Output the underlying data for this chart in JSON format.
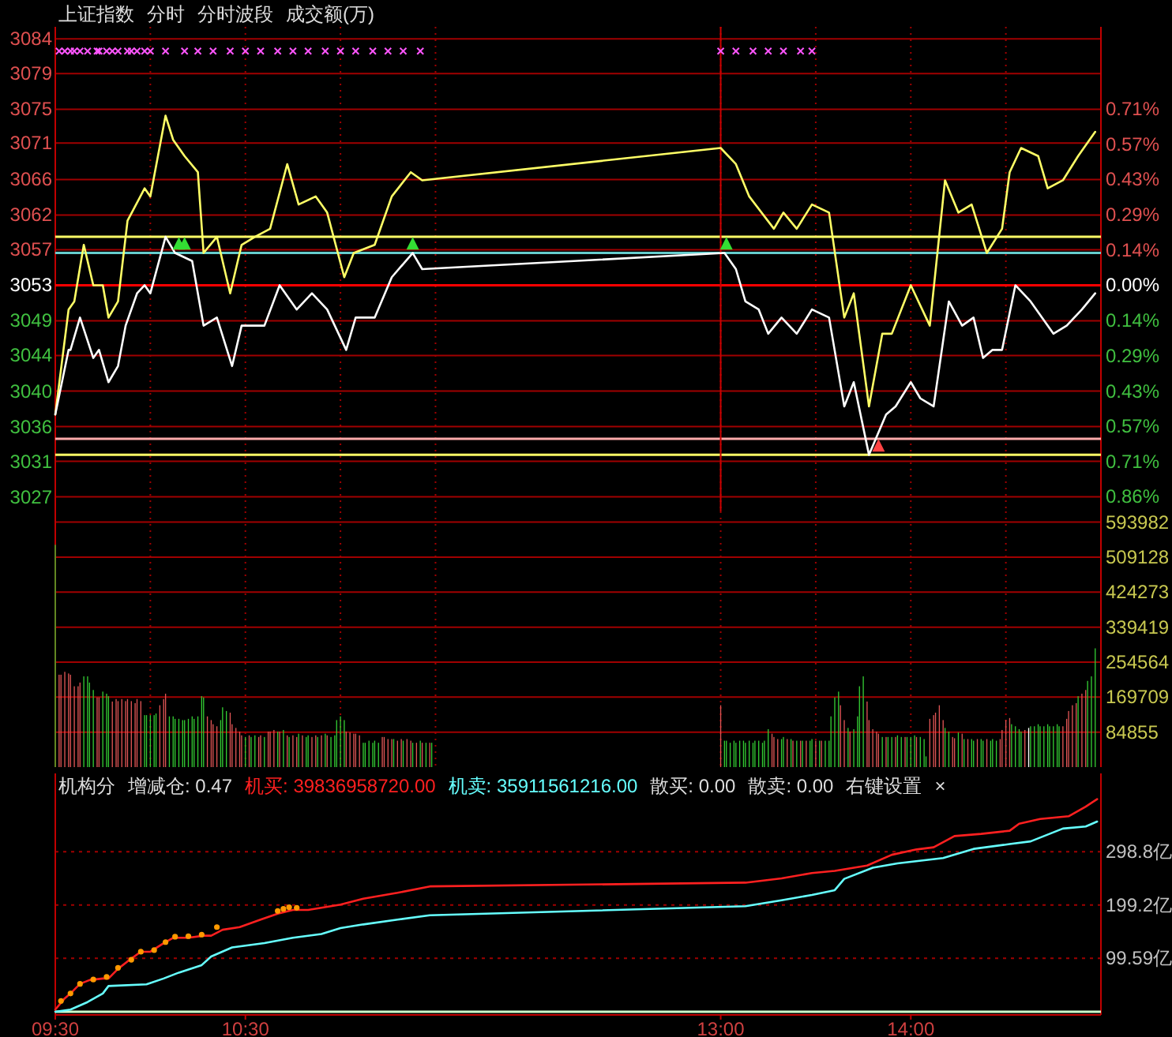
{
  "chart_data": [
    {
      "type": "line",
      "title": "上证指数",
      "annotations": [
        "分时",
        "分时波段",
        "成交额(万)"
      ],
      "xlim": [
        9.5,
        15
      ],
      "xticks": [
        {
          "value": 9.5,
          "label": null
        },
        {
          "value": 10,
          "label": null
        },
        {
          "value": 10.5,
          "label": null
        },
        {
          "value": 11,
          "label": null
        },
        {
          "value": 11.5,
          "label": null
        },
        {
          "value": 13,
          "label": null
        },
        {
          "value": 13.5,
          "label": null
        },
        {
          "value": 14,
          "label": null
        },
        {
          "value": 14.5,
          "label": null
        },
        {
          "value": 15,
          "label": null
        }
      ],
      "ylim": [
        3025,
        3085
      ],
      "yticks": [
        {
          "value": 3026.8,
          "label": "3027"
        },
        {
          "value": 3031.2,
          "label": "3031"
        },
        {
          "value": 3035.5,
          "label": "3036"
        },
        {
          "value": 3039.9,
          "label": "3040"
        },
        {
          "value": 3044.3,
          "label": "3044"
        },
        {
          "value": 3048.6,
          "label": "3049"
        },
        {
          "value": 3053,
          "label": "3053"
        },
        {
          "value": 3057.4,
          "label": "3057"
        },
        {
          "value": 3061.7,
          "label": "3062"
        },
        {
          "value": 3066.1,
          "label": "3066"
        },
        {
          "value": 3070.6,
          "label": "3071"
        },
        {
          "value": 3074.8,
          "label": "3075"
        },
        {
          "value": 3079.2,
          "label": "3079"
        },
        {
          "value": 3083.5,
          "label": "3084"
        }
      ],
      "y2lim": [
        -0.917,
        1.048
      ],
      "y2ticks": [
        {
          "value": -0.857,
          "label": "0.86%"
        },
        {
          "value": -0.714,
          "label": "0.71%"
        },
        {
          "value": -0.571,
          "label": "0.57%"
        },
        {
          "value": -0.429,
          "label": "0.43%"
        },
        {
          "value": -0.286,
          "label": "0.29%"
        },
        {
          "value": -0.143,
          "label": "0.14%"
        },
        {
          "value": 0,
          "label": "0.00%"
        },
        {
          "value": 0.143,
          "label": "0.14%"
        },
        {
          "value": 0.286,
          "label": "0.29%"
        },
        {
          "value": 0.429,
          "label": "0.43%"
        },
        {
          "value": 0.571,
          "label": "0.57%"
        },
        {
          "value": 0.714,
          "label": "0.71%"
        }
      ],
      "grid": true,
      "tick_labels": "y",
      "ref_lines": [
        {
          "axis": "y",
          "value": 3053,
          "color": "#ff0000"
        },
        {
          "axis": "y",
          "value": 3059,
          "color": "#ffff66"
        },
        {
          "axis": "y",
          "value": 3057,
          "color": "#66cccc"
        },
        {
          "axis": "y",
          "value": 3034,
          "color": "#ffaaaa"
        },
        {
          "axis": "y",
          "value": 3032,
          "color": "#ffff66"
        },
        {
          "axis": "x",
          "value": 13,
          "color": "#cc0000"
        }
      ],
      "series": [
        {
          "color": "#ffff66",
          "x": [
            9.5,
            9.57,
            9.6,
            9.65,
            9.7,
            9.75,
            9.78,
            9.83,
            9.88,
            9.97,
            10,
            10.08,
            10.12,
            10.18,
            10.25,
            10.28,
            10.35,
            10.42,
            10.48,
            10.55,
            10.63,
            10.72,
            10.78,
            10.87,
            10.93,
            11.02,
            11.07,
            11.18,
            11.27,
            11.37,
            11.43,
            13,
            13.08,
            13.15,
            13.28,
            13.33,
            13.4,
            13.48,
            13.57,
            13.65,
            13.7,
            13.78,
            13.85,
            13.9,
            14,
            14.1,
            14.18,
            14.25,
            14.32,
            14.4,
            14.48,
            14.52,
            14.58,
            14.67,
            14.72,
            14.8,
            14.88,
            14.97
          ],
          "values": [
            3037,
            3050,
            3051,
            3058,
            3053,
            3053,
            3049,
            3051,
            3061,
            3065,
            3064,
            3074,
            3071,
            3069,
            3067,
            3057,
            3059,
            3052,
            3058,
            3059,
            3060,
            3068,
            3063,
            3064,
            3062,
            3054,
            3057,
            3058,
            3064,
            3067,
            3066,
            3070,
            3068,
            3064,
            3060,
            3062,
            3060,
            3063,
            3062,
            3049,
            3052,
            3038,
            3047,
            3047,
            3053,
            3048,
            3066,
            3062,
            3063,
            3057,
            3060,
            3067,
            3070,
            3069,
            3065,
            3066,
            3069,
            3072
          ]
        },
        {
          "color": "#ffffff",
          "x": [
            9.5,
            9.57,
            9.58,
            9.63,
            9.7,
            9.73,
            9.78,
            9.83,
            9.87,
            9.93,
            9.97,
            10,
            10.08,
            10.13,
            10.22,
            10.28,
            10.35,
            10.43,
            10.48,
            10.6,
            10.68,
            10.77,
            10.85,
            10.93,
            11.03,
            11.08,
            11.18,
            11.27,
            11.38,
            11.43,
            13.02,
            13.08,
            13.13,
            13.2,
            13.25,
            13.32,
            13.4,
            13.48,
            13.57,
            13.65,
            13.7,
            13.78,
            13.87,
            13.92,
            14,
            14.05,
            14.12,
            14.2,
            14.27,
            14.33,
            14.38,
            14.43,
            14.48,
            14.55,
            14.63,
            14.75,
            14.82,
            14.9,
            14.97
          ],
          "values": [
            3037,
            3045,
            3045,
            3049,
            3044,
            3045,
            3041,
            3043,
            3048,
            3052,
            3053,
            3052,
            3059,
            3057,
            3056,
            3048,
            3049,
            3043,
            3048,
            3048,
            3053,
            3050,
            3052,
            3050,
            3045,
            3049,
            3049,
            3054,
            3057,
            3055,
            3057,
            3055,
            3051,
            3050,
            3047,
            3049,
            3047,
            3050,
            3049,
            3038,
            3041,
            3032,
            3037,
            3038,
            3041,
            3039,
            3038,
            3051,
            3048,
            3049,
            3044,
            3045,
            3045,
            3053,
            3051,
            3047,
            3048,
            3050,
            3052
          ]
        },
        {
          "type": "scatter",
          "marker": "cross",
          "color": "#ff55ff",
          "x": [
            9.52,
            9.55,
            9.58,
            9.6,
            9.63,
            9.67,
            9.72,
            9.73,
            9.77,
            9.8,
            9.83,
            9.88,
            9.9,
            9.93,
            9.97,
            10,
            10.08,
            10.18,
            10.25,
            10.33,
            10.42,
            10.5,
            10.58,
            10.67,
            10.75,
            10.83,
            10.92,
            11,
            11.08,
            11.17,
            11.25,
            11.33,
            11.42,
            13,
            13.08,
            13.17,
            13.25,
            13.33,
            13.42,
            13.48
          ],
          "values": [
            3082,
            3082,
            3082,
            3082,
            3082,
            3082,
            3082,
            3082,
            3082,
            3082,
            3082,
            3082,
            3082,
            3082,
            3082,
            3082,
            3082,
            3082,
            3082,
            3082,
            3082,
            3082,
            3082,
            3082,
            3082,
            3082,
            3082,
            3082,
            3082,
            3082,
            3082,
            3082,
            3082,
            3082,
            3082,
            3082,
            3082,
            3082,
            3082,
            3082
          ]
        },
        {
          "type": "scatter",
          "marker": "triangle",
          "color": "#33dd33",
          "x": [
            10.15,
            10.18,
            11.38,
            13.03
          ],
          "values": [
            3058,
            3058,
            3058,
            3058
          ]
        },
        {
          "type": "scatter",
          "marker": "triangle",
          "color": "#ff4444",
          "x": [
            13.83
          ],
          "values": [
            3033
          ]
        }
      ]
    },
    {
      "type": "bar",
      "xlim": [
        9.5,
        15
      ],
      "xticks": [
        {
          "value": 9.5,
          "label": null
        },
        {
          "value": 10,
          "label": null
        },
        {
          "value": 10.5,
          "label": null
        },
        {
          "value": 11,
          "label": null
        },
        {
          "value": 11.5,
          "label": null
        },
        {
          "value": 13,
          "label": null
        },
        {
          "value": 13.5,
          "label": null
        },
        {
          "value": 14,
          "label": null
        },
        {
          "value": 14.5,
          "label": null
        },
        {
          "value": 15,
          "label": null
        }
      ],
      "ylim": [
        0,
        620000
      ],
      "yticks": [
        84855,
        169709,
        254564,
        339419,
        424273,
        509128,
        593982
      ],
      "grid": true,
      "tick_labels": "y",
      "x": [
        9.5,
        9.52,
        9.53,
        9.55,
        9.57,
        9.58,
        9.6,
        9.62,
        9.63,
        9.65,
        9.67,
        9.68,
        9.7,
        9.72,
        9.73,
        9.75,
        9.77,
        9.78,
        9.8,
        9.82,
        9.83,
        9.85,
        9.87,
        9.88,
        9.9,
        9.92,
        9.93,
        9.95,
        9.97,
        9.98,
        10,
        10.02,
        10.03,
        10.05,
        10.07,
        10.08,
        10.1,
        10.12,
        10.13,
        10.15,
        10.17,
        10.18,
        10.2,
        10.22,
        10.23,
        10.25,
        10.27,
        10.28,
        10.3,
        10.32,
        10.33,
        10.35,
        10.37,
        10.38,
        10.4,
        10.42,
        10.43,
        10.45,
        10.47,
        10.48,
        10.5,
        10.52,
        10.53,
        10.55,
        10.57,
        10.58,
        10.6,
        10.62,
        10.63,
        10.65,
        10.67,
        10.68,
        10.7,
        10.72,
        10.73,
        10.75,
        10.77,
        10.78,
        10.8,
        10.82,
        10.83,
        10.85,
        10.87,
        10.88,
        10.9,
        10.92,
        10.93,
        10.95,
        10.97,
        10.98,
        11,
        11.02,
        11.03,
        11.05,
        11.07,
        11.08,
        11.1,
        11.12,
        11.13,
        11.15,
        11.17,
        11.18,
        11.2,
        11.22,
        11.23,
        11.25,
        11.27,
        11.28,
        11.3,
        11.32,
        11.33,
        11.35,
        11.37,
        11.38,
        11.4,
        11.42,
        11.43,
        11.45,
        11.47,
        11.48,
        13,
        13.02,
        13.03,
        13.05,
        13.07,
        13.08,
        13.1,
        13.12,
        13.13,
        13.15,
        13.17,
        13.18,
        13.2,
        13.22,
        13.23,
        13.25,
        13.27,
        13.28,
        13.3,
        13.32,
        13.33,
        13.35,
        13.37,
        13.38,
        13.4,
        13.42,
        13.43,
        13.45,
        13.47,
        13.48,
        13.5,
        13.52,
        13.53,
        13.55,
        13.57,
        13.58,
        13.6,
        13.62,
        13.63,
        13.65,
        13.67,
        13.68,
        13.7,
        13.72,
        13.73,
        13.75,
        13.77,
        13.78,
        13.8,
        13.82,
        13.83,
        13.85,
        13.87,
        13.88,
        13.9,
        13.92,
        13.93,
        13.95,
        13.97,
        13.98,
        14,
        14.02,
        14.03,
        14.05,
        14.07,
        14.08,
        14.1,
        14.12,
        14.13,
        14.15,
        14.17,
        14.18,
        14.2,
        14.22,
        14.23,
        14.25,
        14.27,
        14.28,
        14.3,
        14.32,
        14.33,
        14.35,
        14.37,
        14.38,
        14.4,
        14.42,
        14.43,
        14.45,
        14.47,
        14.48,
        14.5,
        14.52,
        14.53,
        14.55,
        14.57,
        14.58,
        14.6,
        14.62,
        14.63,
        14.65,
        14.67,
        14.68,
        14.7,
        14.72,
        14.73,
        14.75,
        14.77,
        14.78,
        14.8,
        14.82,
        14.83,
        14.85,
        14.87,
        14.88,
        14.9,
        14.92,
        14.93,
        14.95,
        14.97
      ],
      "values": [
        539000,
        224000,
        224000,
        231000,
        227000,
        224000,
        196000,
        196000,
        205000,
        220000,
        220000,
        205000,
        187000,
        169000,
        169000,
        183000,
        178000,
        172000,
        159000,
        165000,
        160000,
        165000,
        160000,
        165000,
        160000,
        155000,
        165000,
        160000,
        126000,
        126000,
        126000,
        126000,
        130000,
        150000,
        165000,
        178000,
        123000,
        123000,
        117000,
        117000,
        114000,
        114000,
        117000,
        123000,
        117000,
        123000,
        172000,
        169000,
        123000,
        114000,
        104000,
        99000,
        114000,
        145000,
        136000,
        132000,
        104000,
        95000,
        86000,
        77000,
        73000,
        77000,
        73000,
        77000,
        73000,
        77000,
        73000,
        86000,
        86000,
        90000,
        86000,
        86000,
        90000,
        77000,
        73000,
        77000,
        73000,
        81000,
        77000,
        73000,
        77000,
        73000,
        77000,
        73000,
        77000,
        81000,
        77000,
        73000,
        77000,
        114000,
        123000,
        114000,
        86000,
        84000,
        81000,
        81000,
        77000,
        59000,
        59000,
        64000,
        59000,
        64000,
        59000,
        73000,
        73000,
        68000,
        68000,
        68000,
        64000,
        68000,
        64000,
        68000,
        64000,
        59000,
        59000,
        64000,
        59000,
        59000,
        59000,
        59000,
        150000,
        64000,
        64000,
        59000,
        64000,
        59000,
        64000,
        64000,
        59000,
        64000,
        59000,
        64000,
        64000,
        59000,
        64000,
        92000,
        81000,
        73000,
        68000,
        68000,
        73000,
        68000,
        68000,
        64000,
        64000,
        64000,
        64000,
        64000,
        64000,
        68000,
        64000,
        64000,
        64000,
        64000,
        64000,
        123000,
        169000,
        183000,
        150000,
        114000,
        95000,
        86000,
        92000,
        123000,
        196000,
        220000,
        159000,
        114000,
        92000,
        86000,
        81000,
        73000,
        73000,
        73000,
        73000,
        73000,
        77000,
        73000,
        73000,
        73000,
        73000,
        77000,
        73000,
        73000,
        68000,
        26000,
        117000,
        126000,
        132000,
        150000,
        114000,
        95000,
        86000,
        73000,
        70000,
        84000,
        81000,
        68000,
        68000,
        68000,
        64000,
        68000,
        68000,
        64000,
        68000,
        64000,
        68000,
        64000,
        68000,
        90000,
        114000,
        119000,
        104000,
        99000,
        92000,
        86000,
        90000,
        95000,
        99000,
        99000,
        104000,
        99000,
        99000,
        104000,
        99000,
        99000,
        104000,
        99000,
        99000,
        117000,
        136000,
        150000,
        155000,
        172000,
        178000,
        187000,
        209000,
        220000,
        288000
      ],
      "colors": [
        "#33cc33",
        "#e05555",
        "#e05555",
        "#e05555",
        "#e05555",
        "#e05555",
        "#e05555",
        "#e05555",
        "#e05555",
        "#33cc33",
        "#33cc33",
        "#33cc33",
        "#33cc33",
        "#e05555",
        "#e05555",
        "#33cc33",
        "#33cc33",
        "#33cc33",
        "#e05555",
        "#e05555",
        "#e05555",
        "#e05555",
        "#e05555",
        "#e05555",
        "#e05555",
        "#e05555",
        "#e05555",
        "#e05555",
        "#33cc33",
        "#33cc33",
        "#33cc33",
        "#33cc33",
        "#33cc33",
        "#e05555",
        "#e05555",
        "#e05555",
        "#33cc33",
        "#33cc33",
        "#33cc33",
        "#33cc33",
        "#33cc33",
        "#33cc33",
        "#33cc33",
        "#33cc33",
        "#33cc33",
        "#33cc33",
        "#33cc33",
        "#33cc33",
        "#e05555",
        "#e05555",
        "#e05555",
        "#e05555",
        "#33cc33",
        "#33cc33",
        "#33cc33",
        "#e05555",
        "#e05555",
        "#e05555",
        "#e05555",
        "#e05555",
        "#33cc33",
        "#e05555",
        "#33cc33",
        "#33cc33",
        "#e05555",
        "#e05555",
        "#33cc33",
        "#e05555",
        "#e05555",
        "#e05555",
        "#33cc33",
        "#e05555",
        "#33cc33",
        "#e05555",
        "#33cc33",
        "#e05555",
        "#e05555",
        "#33cc33",
        "#e05555",
        "#33cc33",
        "#33cc33",
        "#e05555",
        "#e05555",
        "#33cc33",
        "#e05555",
        "#33cc33",
        "#e05555",
        "#33cc33",
        "#33cc33",
        "#33cc33",
        "#33cc33",
        "#33cc33",
        "#e05555",
        "#e05555",
        "#e05555",
        "#e05555",
        "#e05555",
        "#33cc33",
        "#33cc33",
        "#33cc33",
        "#33cc33",
        "#33cc33",
        "#33cc33",
        "#e05555",
        "#e05555",
        "#e05555",
        "#e05555",
        "#33cc33",
        "#e05555",
        "#e05555",
        "#33cc33",
        "#e05555",
        "#e05555",
        "#33cc33",
        "#e05555",
        "#33cc33",
        "#e05555",
        "#33cc33",
        "#e05555",
        "#33cc33",
        "#e05555",
        "#33cc33",
        "#33cc33",
        "#33cc33",
        "#33cc33",
        "#33cc33",
        "#33cc33",
        "#33cc33",
        "#33cc33",
        "#33cc33",
        "#33cc33",
        "#33cc33",
        "#33cc33",
        "#33cc33",
        "#33cc33",
        "#33cc33",
        "#e05555",
        "#e05555",
        "#e05555",
        "#33cc33",
        "#33cc33",
        "#e05555",
        "#33cc33",
        "#e05555",
        "#33cc33",
        "#e05555",
        "#33cc33",
        "#e05555",
        "#33cc33",
        "#33cc33",
        "#e05555",
        "#33cc33",
        "#e05555",
        "#33cc33",
        "#33cc33",
        "#33cc33",
        "#33cc33",
        "#33cc33",
        "#e05555",
        "#e05555",
        "#33cc33",
        "#e05555",
        "#33cc33",
        "#33cc33",
        "#33cc33",
        "#33cc33",
        "#e05555",
        "#e05555",
        "#e05555",
        "#e05555",
        "#e05555",
        "#33cc33",
        "#e05555",
        "#33cc33",
        "#33cc33",
        "#e05555",
        "#33cc33",
        "#33cc33",
        "#e05555",
        "#33cc33",
        "#33cc33",
        "#33cc33",
        "#e05555",
        "#33cc33",
        "#33cc33",
        "#33cc33",
        "#e05555",
        "#e05555",
        "#e05555",
        "#e05555",
        "#e05555",
        "#33cc33",
        "#33cc33",
        "#e05555",
        "#e05555",
        "#33cc33",
        "#e05555",
        "#33cc33",
        "#e05555",
        "#33cc33",
        "#33cc33",
        "#e05555",
        "#33cc33",
        "#33cc33",
        "#e05555",
        "#33cc33",
        "#33cc33",
        "#33cc33",
        "#e05555",
        "#e05555",
        "#e05555",
        "#e05555",
        "#33cc33",
        "#33cc33",
        "#33cc33",
        "#33cc33",
        "#e05555",
        "#ffffff",
        "#33cc33",
        "#33cc33",
        "#33cc33",
        "#33cc33",
        "#33cc33",
        "#33cc33",
        "#33cc33",
        "#33cc33",
        "#33cc33",
        "#33cc33",
        "#e05555",
        "#e05555",
        "#e05555",
        "#e05555",
        "#e05555",
        "#33cc33",
        "#e05555",
        "#e05555",
        "#33cc33",
        "#33cc33",
        "#33cc33"
      ]
    },
    {
      "type": "line",
      "title": "机构分",
      "subtitle": "增减仓: 0.47",
      "legend": "top left",
      "annotations": [
        "散买: 0.00",
        "散卖: 0.00",
        "右键设置",
        "×"
      ],
      "xlim": [
        9.5,
        15
      ],
      "xticks": [
        {
          "value": 9.5,
          "label": "09:30"
        },
        {
          "value": 10.5,
          "label": "10:30"
        },
        {
          "value": 13,
          "label": "13:00"
        },
        {
          "value": 14,
          "label": "14:00"
        }
      ],
      "ylim": [
        -6,
        445
      ],
      "yticks": [
        {
          "value": 99.59,
          "label": "99.59亿"
        },
        {
          "value": 199.2,
          "label": "199.2亿"
        },
        {
          "value": 298.8,
          "label": "298.8亿"
        }
      ],
      "grid": "y",
      "ref_lines": [
        {
          "axis": "y",
          "value": 0,
          "color": "#ccffcc"
        }
      ],
      "series": [
        {
          "name": "机买: 39836958720.00",
          "color": "#ff2020",
          "x": [
            9.5,
            9.55,
            9.58,
            9.63,
            9.68,
            9.75,
            9.78,
            9.83,
            9.88,
            9.95,
            10,
            10.07,
            10.12,
            10.2,
            10.28,
            10.32,
            10.38,
            10.47,
            10.58,
            10.67,
            10.75,
            10.83,
            11,
            11.12,
            11.3,
            11.47,
            13.13,
            13.32,
            13.48,
            13.6,
            13.77,
            13.9,
            14.03,
            14.12,
            14.23,
            14.37,
            14.52,
            14.57,
            14.68,
            14.83,
            14.92,
            14.98
          ],
          "values": [
            4,
            25,
            34,
            52,
            59,
            62,
            62,
            80,
            94,
            112,
            112,
            128,
            138,
            138,
            142,
            142,
            153,
            158,
            172,
            183,
            190,
            190,
            200,
            211,
            222,
            234,
            241,
            249,
            259,
            263,
            273,
            293,
            303,
            307,
            328,
            332,
            338,
            351,
            360,
            365,
            383,
            397
          ]
        },
        {
          "name": "机卖: 35911561216.00",
          "color": "#66ffff",
          "x": [
            9.5,
            9.58,
            9.67,
            9.75,
            9.78,
            9.98,
            10.07,
            10.15,
            10.27,
            10.32,
            10.43,
            10.6,
            10.75,
            10.9,
            11,
            11.12,
            11.3,
            11.47,
            13.13,
            13.32,
            13.48,
            13.6,
            13.65,
            13.8,
            13.93,
            14.17,
            14.33,
            14.52,
            14.63,
            14.8,
            14.92,
            14.98
          ],
          "values": [
            0,
            4,
            18,
            34,
            48,
            51,
            62,
            73,
            87,
            103,
            120,
            128,
            138,
            145,
            156,
            163,
            172,
            180,
            197,
            208,
            218,
            227,
            248,
            269,
            277,
            287,
            304,
            313,
            318,
            342,
            346,
            355
          ]
        },
        {
          "type": "scatter",
          "marker": "circle",
          "color": "#ff9900",
          "x": [
            9.53,
            9.58,
            9.63,
            9.7,
            9.77,
            9.83,
            9.9,
            9.95,
            10.02,
            10.08,
            10.13,
            10.2,
            10.27,
            10.35,
            10.67,
            10.7,
            10.73,
            10.77
          ],
          "values": [
            20,
            34,
            52,
            60,
            65,
            82,
            97,
            112,
            115,
            130,
            140,
            141,
            144,
            158,
            188,
            192,
            195,
            194
          ]
        }
      ]
    }
  ]
}
